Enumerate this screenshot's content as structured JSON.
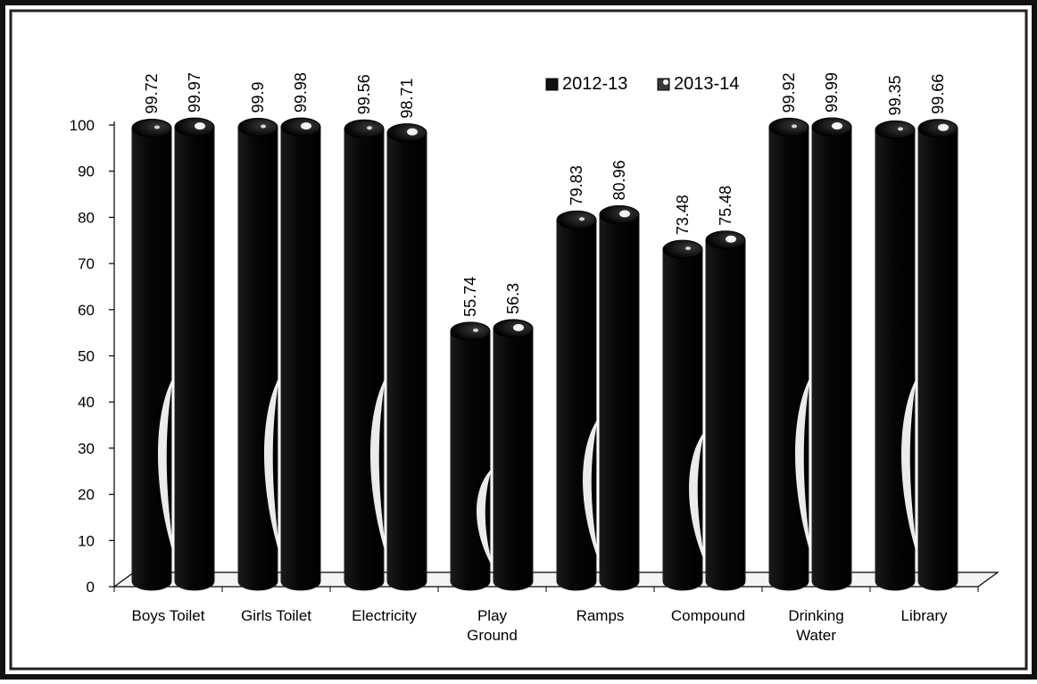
{
  "chart_data": {
    "type": "bar",
    "categories": [
      [
        "Boys Toilet"
      ],
      [
        "Girls Toilet"
      ],
      [
        "Electricity"
      ],
      [
        "Play",
        "Ground"
      ],
      [
        "Ramps"
      ],
      [
        "Compound"
      ],
      [
        "Drinking",
        "Water"
      ],
      [
        "Library"
      ]
    ],
    "series": [
      {
        "name": "2012-13",
        "values": [
          99.72,
          99.9,
          99.56,
          55.74,
          79.83,
          73.48,
          99.92,
          99.35
        ],
        "labels": [
          "99.72",
          "99.9",
          "99.56",
          "55.74",
          "79.83",
          "73.48",
          "99.92",
          "99.35"
        ]
      },
      {
        "name": "2013-14",
        "values": [
          99.97,
          99.98,
          98.71,
          56.3,
          80.96,
          75.48,
          99.99,
          99.66
        ],
        "labels": [
          "99.97",
          "99.98",
          "98.71",
          "56.3",
          "80.96",
          "75.48",
          "99.99",
          "99.66"
        ]
      }
    ],
    "ylim": [
      0,
      100
    ],
    "yticks": [
      "0",
      "10",
      "20",
      "30",
      "40",
      "50",
      "60",
      "70",
      "80",
      "90",
      "100"
    ],
    "legend_position": "top-right",
    "grid": false,
    "title": "",
    "xlabel": "",
    "ylabel": ""
  },
  "colors": {
    "bar": "#0a0a0a",
    "bar_edge": "#1e1e1e",
    "highlight": "#ffffff",
    "axis": "#000000",
    "frame": "#111111",
    "background": "#ffffff"
  }
}
